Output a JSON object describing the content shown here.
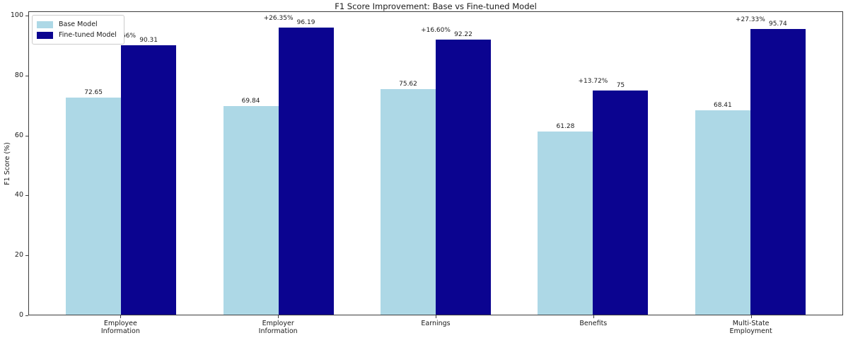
{
  "chart_data": {
    "type": "bar",
    "title": "F1 Score Improvement: Base vs Fine-tuned Model",
    "xlabel": "",
    "ylabel": "F1 Score (%)",
    "ylim": [
      0,
      100
    ],
    "yticks": [
      0,
      20,
      40,
      60,
      80,
      100
    ],
    "grid": false,
    "legend_position": "upper left",
    "categories": [
      "Employee\nInformation",
      "Employer\nInformation",
      "Earnings",
      "Benefits",
      "Multi-State\nEmployment"
    ],
    "series": [
      {
        "name": "Base Model",
        "color": "#ADD8E6",
        "values": [
          72.65,
          69.84,
          75.62,
          61.28,
          68.41
        ],
        "value_labels": [
          "72.65",
          "69.84",
          "75.62",
          "61.28",
          "68.41"
        ]
      },
      {
        "name": "Fine-tuned Model",
        "color": "#0B0490",
        "values": [
          90.31,
          96.19,
          92.22,
          75,
          95.74
        ],
        "value_labels": [
          "90.31",
          "96.19",
          "92.22",
          "75",
          "95.74"
        ]
      }
    ],
    "improvement_labels": [
      "+17.66%",
      "+26.35%",
      "+16.60%",
      "+13.72%",
      "+27.33%"
    ]
  },
  "colors": {
    "base_model": "#ADD8E6",
    "fine_tuned_model": "#0B0490",
    "axis": "#3d3d3d",
    "text": "#1a1a1a",
    "legend_border": "#cccccc",
    "background": "#ffffff"
  }
}
